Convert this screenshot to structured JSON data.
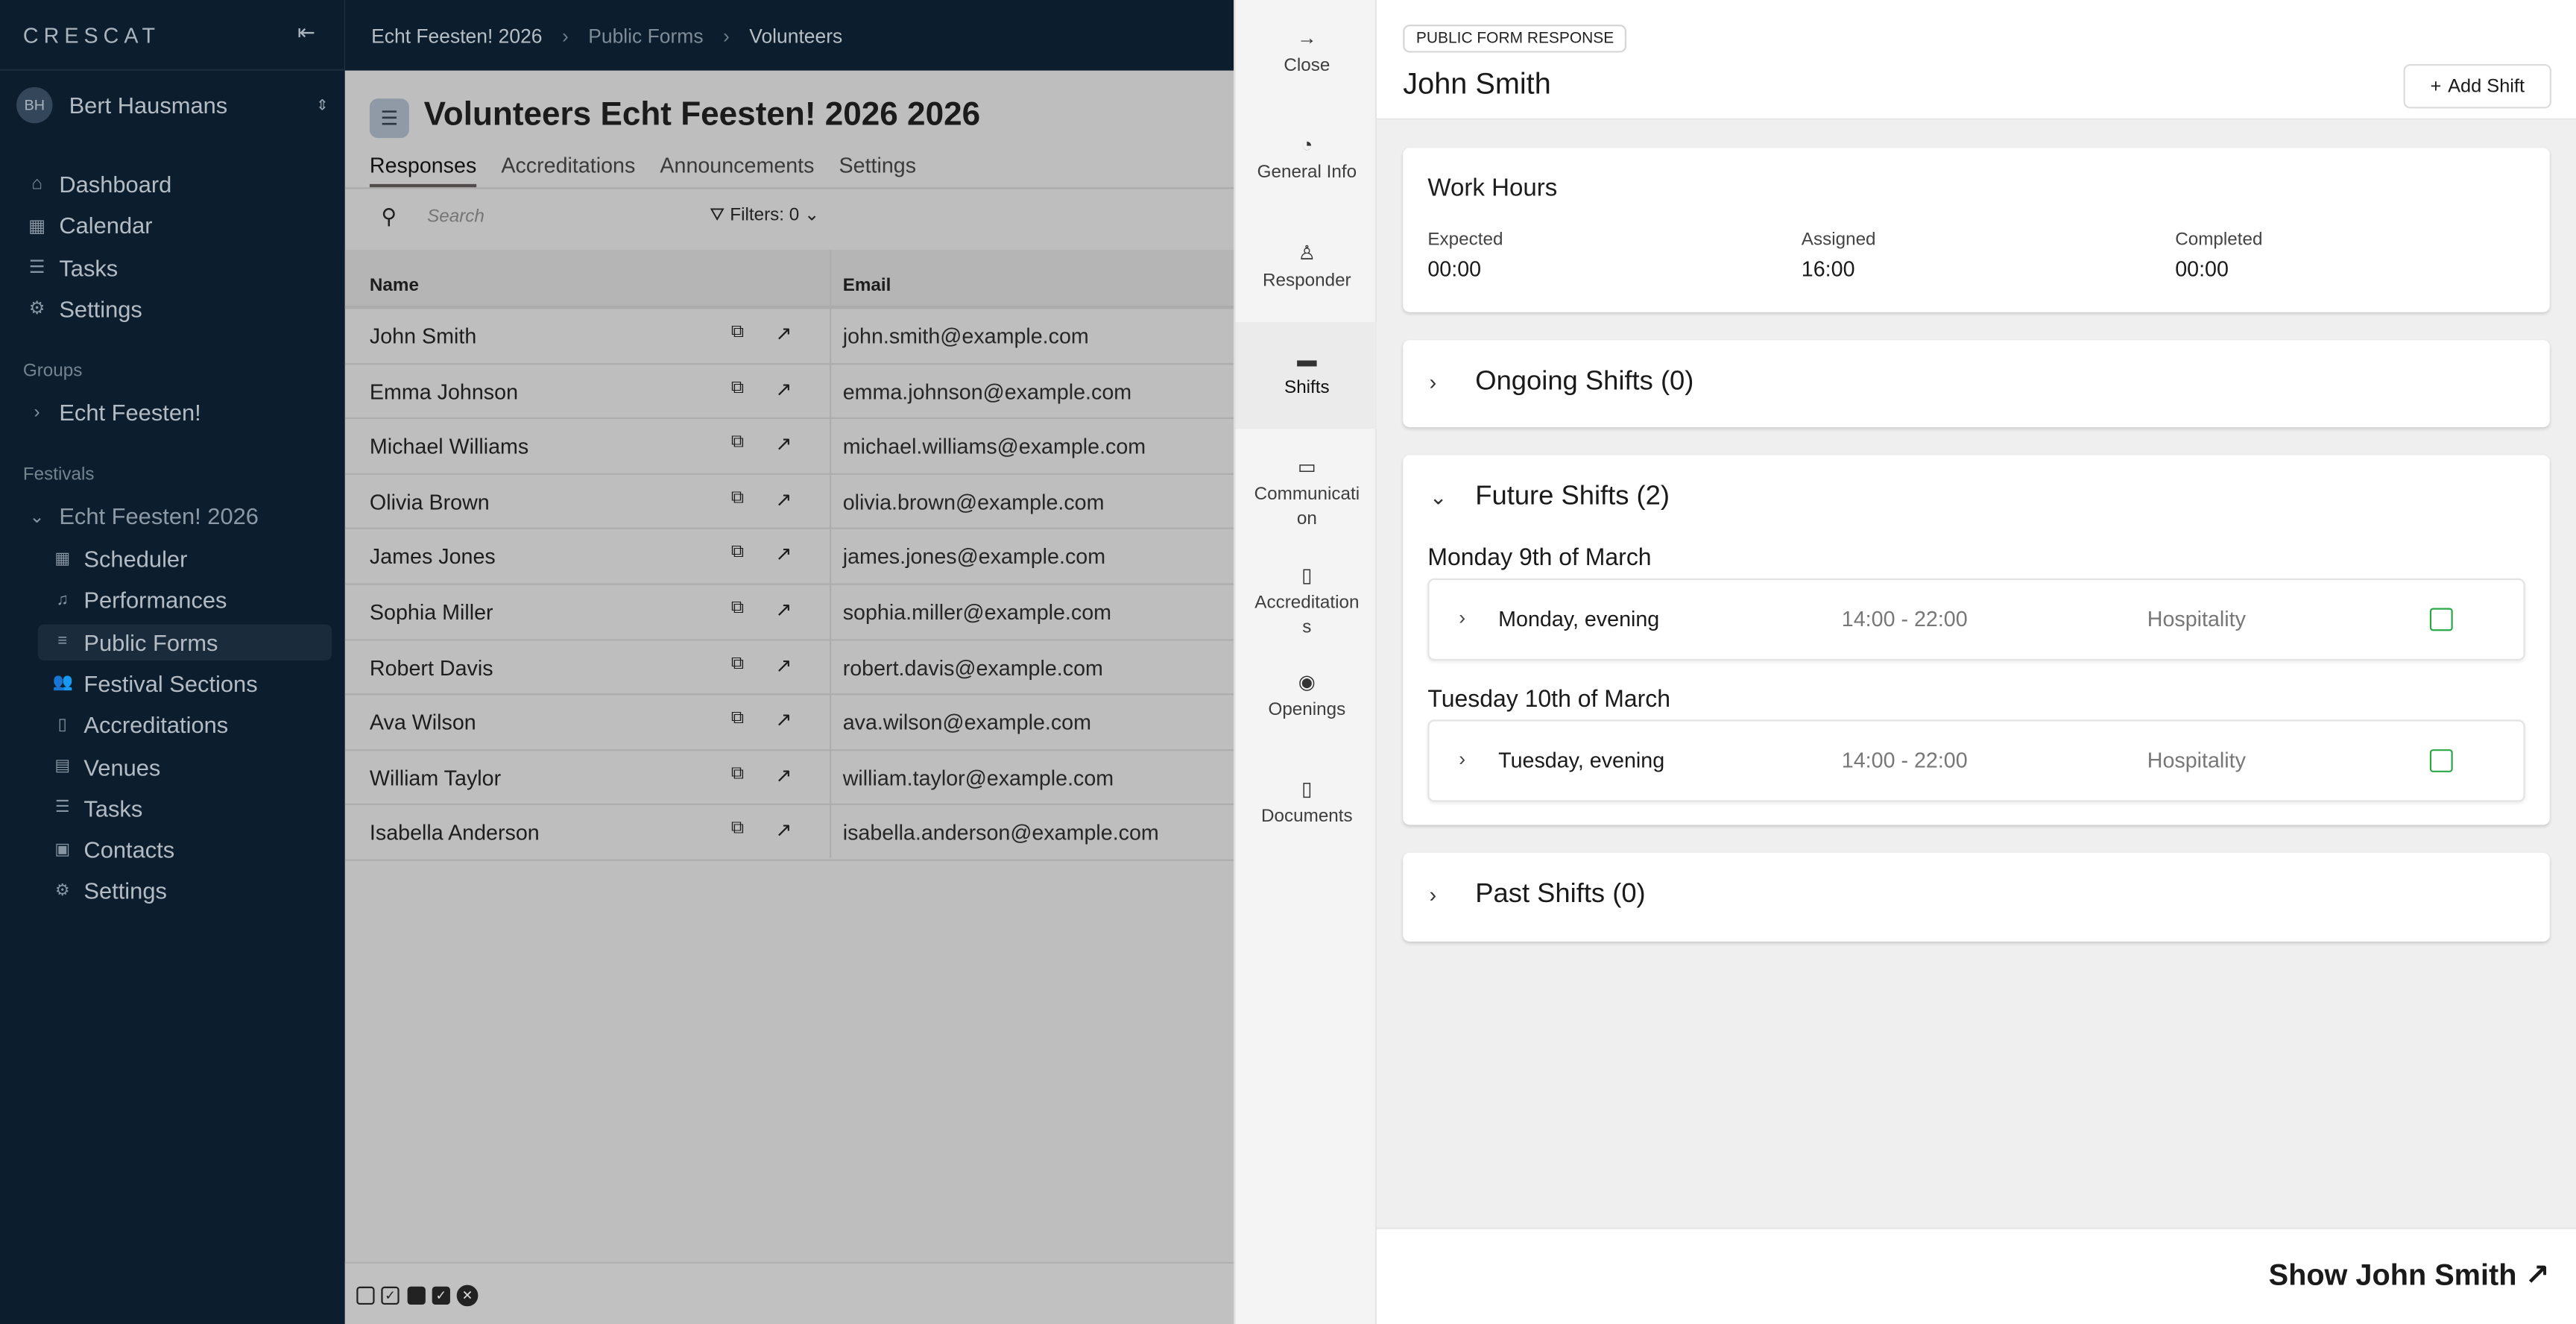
{
  "sidebar": {
    "logo": "CRESCAT",
    "user": {
      "initials": "BH",
      "name": "Bert Hausmans"
    },
    "nav": [
      {
        "icon": "home-icon",
        "label": "Dashboard"
      },
      {
        "icon": "calendar-icon",
        "label": "Calendar"
      },
      {
        "icon": "tasks-icon",
        "label": "Tasks"
      },
      {
        "icon": "gear-icon",
        "label": "Settings"
      }
    ],
    "groups_label": "Groups",
    "groups": [
      {
        "label": "Echt Feesten!"
      }
    ],
    "festivals_label": "Festivals",
    "festival": "Echt Feesten! 2026",
    "festival_items": [
      {
        "icon": "calendar-icon",
        "label": "Scheduler"
      },
      {
        "icon": "music-icon",
        "label": "Performances"
      },
      {
        "icon": "list-icon",
        "label": "Public Forms",
        "active": true
      },
      {
        "icon": "users-icon",
        "label": "Festival Sections"
      },
      {
        "icon": "badge-icon",
        "label": "Accreditations"
      },
      {
        "icon": "venue-icon",
        "label": "Venues"
      },
      {
        "icon": "tasks-icon",
        "label": "Tasks"
      },
      {
        "icon": "contacts-icon",
        "label": "Contacts"
      },
      {
        "icon": "gear-icon",
        "label": "Settings"
      }
    ]
  },
  "breadcrumb": [
    "Echt Feesten! 2026",
    "Public Forms",
    "Volunteers"
  ],
  "page": {
    "title": "Volunteers Echt Feesten! 2026 2026",
    "tabs": [
      "Responses",
      "Accreditations",
      "Announcements",
      "Settings"
    ],
    "active_tab": "Responses",
    "search_placeholder": "Search",
    "filters_label": "Filters: 0",
    "columns": [
      "Name",
      "Email"
    ],
    "rows": [
      [
        "John Smith",
        "john.smith@example.com"
      ],
      [
        "Emma Johnson",
        "emma.johnson@example.com"
      ],
      [
        "Michael Williams",
        "michael.williams@example.com"
      ],
      [
        "Olivia Brown",
        "olivia.brown@example.com"
      ],
      [
        "James Jones",
        "james.jones@example.com"
      ],
      [
        "Sophia Miller",
        "sophia.miller@example.com"
      ],
      [
        "Robert Davis",
        "robert.davis@example.com"
      ],
      [
        "Ava Wilson",
        "ava.wilson@example.com"
      ],
      [
        "William Taylor",
        "william.taylor@example.com"
      ],
      [
        "Isabella Anderson",
        "isabella.anderson@example.com"
      ]
    ]
  },
  "panel_nav": [
    {
      "icon": "arrow-right-icon",
      "label": "Close"
    },
    {
      "icon": "gauge-icon",
      "label": "General Info"
    },
    {
      "icon": "user-icon",
      "label": "Responder"
    },
    {
      "icon": "shifts-icon",
      "label": "Shifts",
      "active": true
    },
    {
      "icon": "inbox-icon",
      "label": "Communication"
    },
    {
      "icon": "badge-icon",
      "label": "Accreditations"
    },
    {
      "icon": "eye-icon",
      "label": "Openings"
    },
    {
      "icon": "document-icon",
      "label": "Documents"
    }
  ],
  "panel": {
    "badge": "PUBLIC FORM RESPONSE",
    "title": "John Smith",
    "add_shift": "Add Shift",
    "work_hours": {
      "title": "Work Hours",
      "stats": [
        {
          "label": "Expected",
          "value": "00:00"
        },
        {
          "label": "Assigned",
          "value": "16:00"
        },
        {
          "label": "Completed",
          "value": "00:00"
        }
      ]
    },
    "ongoing": "Ongoing Shifts (0)",
    "future": "Future Shifts (2)",
    "past": "Past Shifts (0)",
    "days": [
      {
        "date": "Monday 9th of March",
        "shift": {
          "name": "Monday, evening",
          "time": "14:00 - 22:00",
          "dept": "Hospitality"
        }
      },
      {
        "date": "Tuesday 10th of March",
        "shift": {
          "name": "Tuesday, evening",
          "time": "14:00 - 22:00",
          "dept": "Hospitality"
        }
      }
    ],
    "show_link": "Show John Smith",
    "accent_green": "#2aa846"
  }
}
